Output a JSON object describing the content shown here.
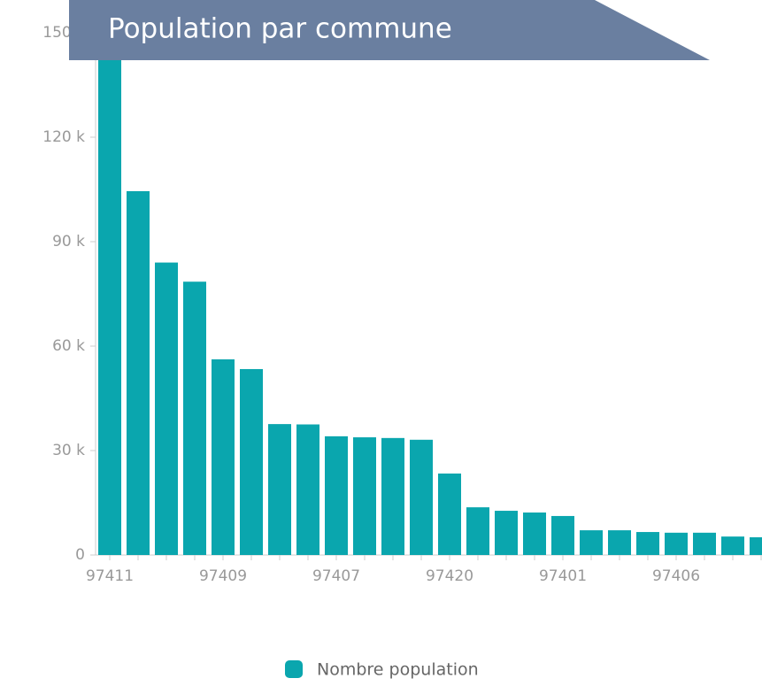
{
  "chart_data": {
    "type": "bar",
    "title": "Population par commune",
    "categories": [
      "97411",
      null,
      null,
      null,
      "97409",
      null,
      null,
      null,
      "97407",
      null,
      null,
      null,
      "97420",
      null,
      null,
      null,
      "97401",
      null,
      null,
      null,
      "97406",
      null,
      null,
      null
    ],
    "series": [
      {
        "name": "Nombre population",
        "color": "#0aa6ae",
        "values": [
          150000,
          104500,
          84000,
          78500,
          56200,
          53400,
          37600,
          37500,
          34100,
          33800,
          33600,
          33100,
          23400,
          13700,
          12700,
          12200,
          11200,
          7100,
          7100,
          6600,
          6400,
          6400,
          5300,
          5100
        ]
      }
    ],
    "ylim": [
      0,
      150000
    ],
    "yticks": [
      {
        "value": 0,
        "label": "0"
      },
      {
        "value": 30000,
        "label": "30 k"
      },
      {
        "value": 60000,
        "label": "60 k"
      },
      {
        "value": 90000,
        "label": "90 k"
      },
      {
        "value": 120000,
        "label": "120 k"
      },
      {
        "value": 150000,
        "label": "150 k"
      }
    ],
    "legend": "bottom"
  }
}
